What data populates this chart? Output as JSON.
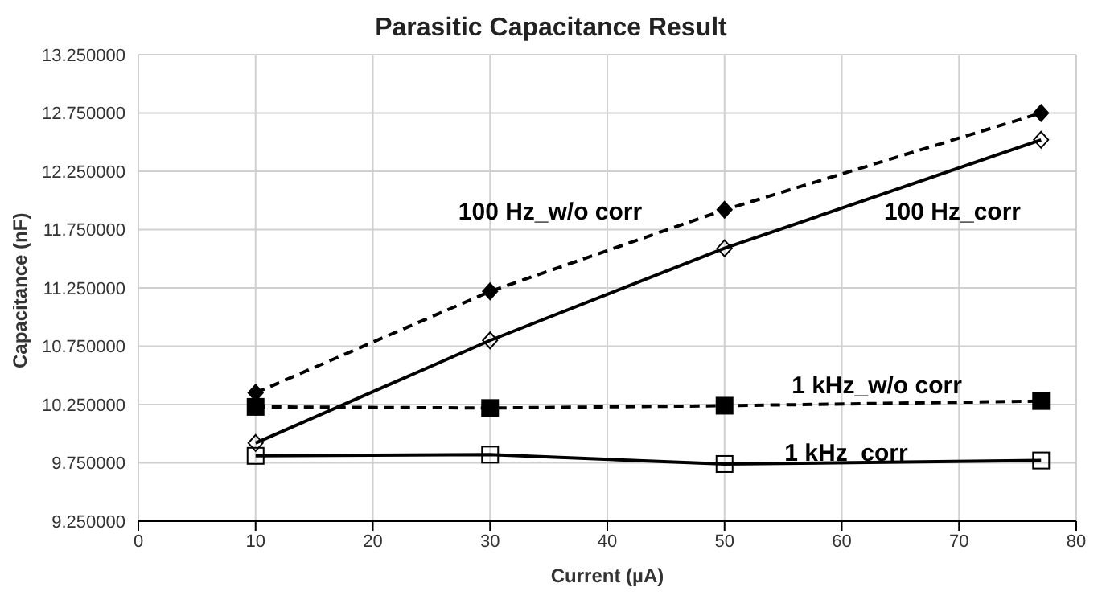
{
  "chart_data": {
    "type": "line",
    "title": "Parasitic Capacitance Result",
    "xlabel": "Current (µA)",
    "ylabel": "Capacitance (nF)",
    "x": [
      10,
      30,
      50,
      77
    ],
    "series": [
      {
        "name": "100 Hz_w/o corr",
        "color": "#000000",
        "values": [
          10.35,
          11.22,
          11.92,
          12.75
        ],
        "marker": "diamond",
        "line_style": "dashed"
      },
      {
        "name": "100 Hz_corr",
        "color": "#000000",
        "values": [
          9.92,
          10.8,
          11.59,
          12.52
        ],
        "marker": "diamond",
        "line_style": "solid"
      },
      {
        "name": "1 kHz_w/o corr",
        "color": "#000000",
        "values": [
          10.23,
          10.22,
          10.24,
          10.28
        ],
        "marker": "square",
        "line_style": "dashed"
      },
      {
        "name": "1 kHz_corr",
        "color": "#000000",
        "values": [
          9.81,
          9.82,
          9.74,
          9.77
        ],
        "marker": "square",
        "line_style": "solid"
      }
    ],
    "xlim": [
      0,
      80
    ],
    "xticks": [
      0,
      10,
      20,
      30,
      40,
      50,
      60,
      70,
      80
    ],
    "ylim": [
      9.25,
      13.25
    ],
    "yticks": [
      {
        "value": 9.25,
        "label": "9.250000"
      },
      {
        "value": 9.75,
        "label": "9.750000"
      },
      {
        "value": 10.25,
        "label": "10.250000"
      },
      {
        "value": 10.75,
        "label": "10.750000"
      },
      {
        "value": 11.25,
        "label": "11.250000"
      },
      {
        "value": 11.75,
        "label": "11.750000"
      },
      {
        "value": 12.25,
        "label": "12.250000"
      },
      {
        "value": 12.75,
        "label": "12.750000"
      },
      {
        "value": 13.25,
        "label": "13.250000"
      }
    ],
    "grid": true,
    "legend": false
  }
}
